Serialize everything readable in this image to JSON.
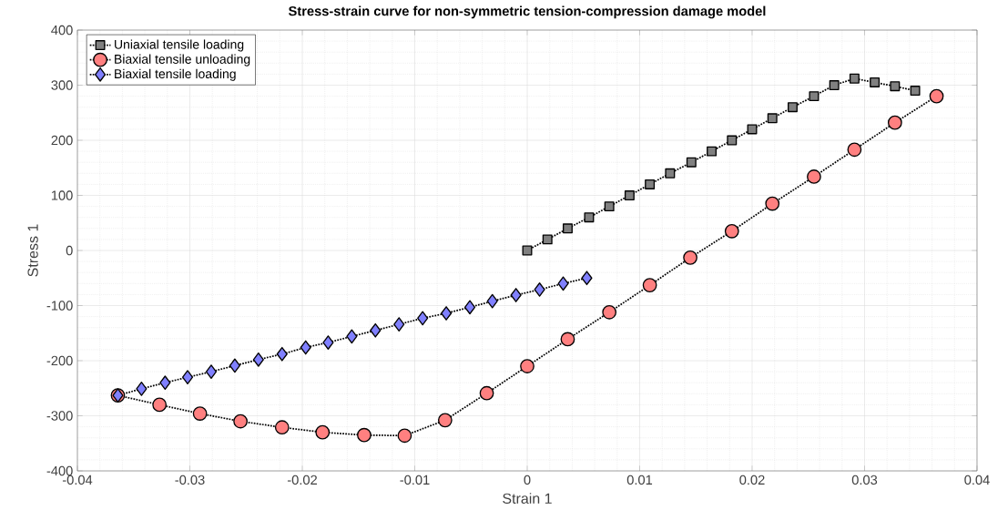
{
  "chart_data": {
    "type": "line",
    "title": "Stress-strain curve for non-symmetric tension-compression damage model",
    "xlabel": "Strain 1",
    "ylabel": "Stress 1",
    "xlim": [
      -0.04,
      0.04
    ],
    "ylim": [
      -400,
      400
    ],
    "xticks": [
      -0.04,
      -0.03,
      -0.02,
      -0.01,
      0,
      0.01,
      0.02,
      0.03,
      0.04
    ],
    "yticks": [
      -400,
      -300,
      -200,
      -100,
      0,
      100,
      200,
      300,
      400
    ],
    "grid": true,
    "legend": "top left",
    "line_style": "dotted",
    "series": [
      {
        "name": "Uniaxial tensile loading",
        "color": "#808080",
        "marker": "square",
        "x": [
          0,
          0.0018,
          0.0036,
          0.0055,
          0.0073,
          0.0091,
          0.0109,
          0.0127,
          0.0146,
          0.0164,
          0.0182,
          0.02,
          0.0218,
          0.0236,
          0.0255,
          0.0273,
          0.0291,
          0.0309,
          0.0327,
          0.0345
        ],
        "values": [
          0,
          20,
          40,
          60,
          80,
          100,
          120,
          140,
          160,
          180,
          200,
          220,
          240,
          260,
          280,
          300,
          312,
          305,
          298,
          290
        ]
      },
      {
        "name": "Biaxial tensile unloading",
        "color": "#ff8080",
        "marker": "circle",
        "x": [
          0.0364,
          0.0327,
          0.0291,
          0.0255,
          0.0218,
          0.0182,
          0.0145,
          0.0109,
          0.0073,
          0.0036,
          0,
          -0.0036,
          -0.0073,
          -0.0109,
          -0.0145,
          -0.0182,
          -0.0218,
          -0.0255,
          -0.0291,
          -0.0327,
          -0.0364
        ],
        "values": [
          280,
          232,
          183,
          134,
          85,
          35,
          -13,
          -63,
          -112,
          -161,
          -210,
          -259,
          -308,
          -336,
          -335,
          -330,
          -321,
          -310,
          -296,
          -280,
          -263
        ]
      },
      {
        "name": "Biaxial tensile loading",
        "color": "#8080ff",
        "marker": "diamond",
        "x": [
          -0.0364,
          -0.0343,
          -0.0322,
          -0.0302,
          -0.0281,
          -0.026,
          -0.0239,
          -0.0218,
          -0.0197,
          -0.0177,
          -0.0156,
          -0.0135,
          -0.0114,
          -0.0093,
          -0.0072,
          -0.0051,
          -0.0031,
          -0.001,
          0.0011,
          0.0032,
          0.0053
        ],
        "values": [
          -263,
          -251,
          -240,
          -230,
          -220,
          -209,
          -198,
          -188,
          -176,
          -167,
          -156,
          -145,
          -134,
          -123,
          -114,
          -103,
          -92,
          -81,
          -71,
          -60,
          -50
        ]
      }
    ]
  }
}
